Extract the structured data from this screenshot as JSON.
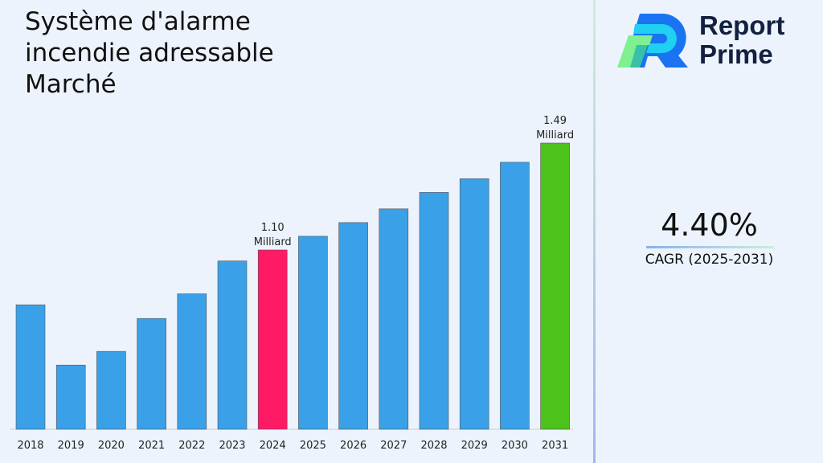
{
  "title": "Système d'alarme incendie adressable Marché",
  "brand": {
    "line1": "Report",
    "line2": "Prime"
  },
  "cagr": {
    "value": "4.40%",
    "label": "CAGR (2025-2031)"
  },
  "colors": {
    "default": "#3aa0e8",
    "highlight_2024": "#ff1a66",
    "highlight_2031": "#4cc21a"
  },
  "chart_data": {
    "type": "bar",
    "title": "Système d'alarme incendie adressable Marché",
    "categories": [
      "2018",
      "2019",
      "2020",
      "2021",
      "2022",
      "2023",
      "2024",
      "2025",
      "2026",
      "2027",
      "2028",
      "2029",
      "2030",
      "2031"
    ],
    "values": [
      0.9,
      0.68,
      0.73,
      0.85,
      0.94,
      1.06,
      1.1,
      1.15,
      1.2,
      1.25,
      1.31,
      1.36,
      1.42,
      1.49
    ],
    "unit": "Milliard",
    "data_labels": [
      {
        "category": "2024",
        "value": "1.10",
        "unit": "Milliard"
      },
      {
        "category": "2031",
        "value": "1.49",
        "unit": "Milliard"
      }
    ],
    "grid": false,
    "legend": "none"
  }
}
